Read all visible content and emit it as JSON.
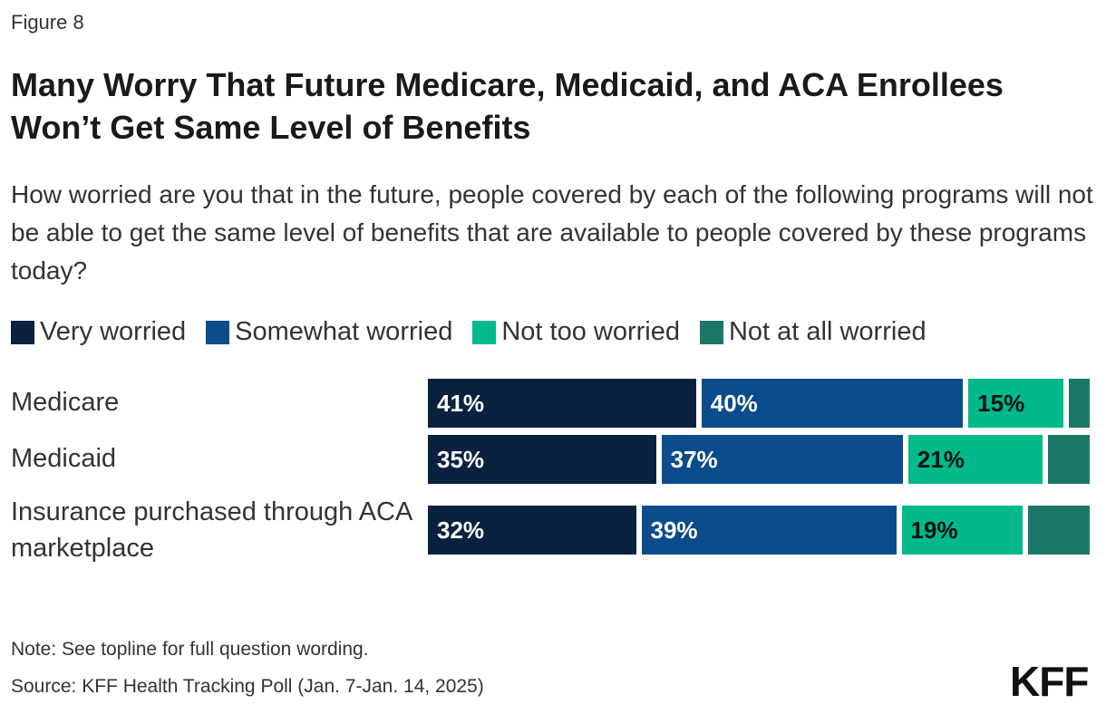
{
  "figure_label": "Figure 8",
  "chart_data": {
    "type": "stacked-bar-horizontal",
    "title": "Many Worry That Future Medicare, Medicaid, and ACA Enrollees Won’t Get Same Level of Benefits",
    "subtitle": "How worried are you that in the future, people covered by each of the following programs will not be able to get the same level of benefits that are available to people covered by these programs today?",
    "categories": [
      "Medicare",
      "Medicaid",
      "Insurance purchased through ACA marketplace"
    ],
    "series": [
      {
        "name": "Very worried",
        "color": "#0a2240",
        "values": [
          41,
          35,
          32
        ],
        "value_labels": [
          "41%",
          "35%",
          "32%"
        ]
      },
      {
        "name": "Somewhat worried",
        "color": "#0b4c8c",
        "values": [
          40,
          37,
          39
        ],
        "value_labels": [
          "40%",
          "37%",
          "39%"
        ]
      },
      {
        "name": "Not too worried",
        "color": "#00b88a",
        "values": [
          15,
          21,
          19
        ],
        "value_labels": [
          "15%",
          "21%",
          "19%"
        ]
      },
      {
        "name": "Not at all worried",
        "color": "#1b7868",
        "values": [
          4,
          7,
          10
        ]
      }
    ]
  },
  "note": "Note: See topline for full question wording.",
  "source": "Source: KFF Health Tracking Poll (Jan. 7-Jan. 14, 2025)",
  "logo": "KFF"
}
